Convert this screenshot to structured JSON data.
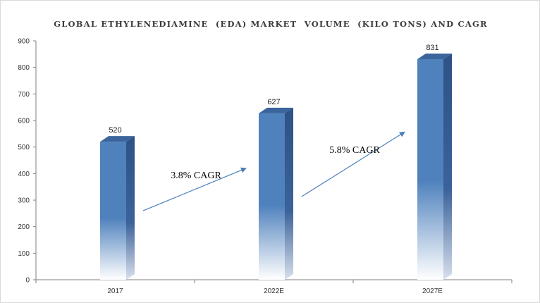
{
  "chart_data": {
    "type": "bar",
    "title": "GLOBAL ETHYLENEDIAMINE  (EDA) MARKET  VOLUME  (KILO TONS) AND CAGR",
    "categories": [
      "2017",
      "2022E",
      "2027E"
    ],
    "series": [
      {
        "values": [
          520,
          627,
          831
        ]
      }
    ],
    "data_labels": [
      "520",
      "627",
      "831"
    ],
    "ylim": [
      0,
      900
    ],
    "y_ticks": [
      0,
      100,
      200,
      300,
      400,
      500,
      600,
      700,
      800,
      900
    ],
    "xlabel": "",
    "ylabel": "",
    "grid": false,
    "legend": "none",
    "annotations": [
      {
        "text": "3.8% CAGR",
        "from_category": "2017",
        "to_category": "2022E"
      },
      {
        "text": "5.8% CAGR",
        "from_category": "2022E",
        "to_category": "2027E"
      }
    ],
    "colors": {
      "bar_front": "#4f81bd",
      "bar_side": "#2e5286",
      "bar_top": "#3c659c",
      "arrow": "#4a7ebb",
      "axis": "#7f7f7f"
    }
  }
}
